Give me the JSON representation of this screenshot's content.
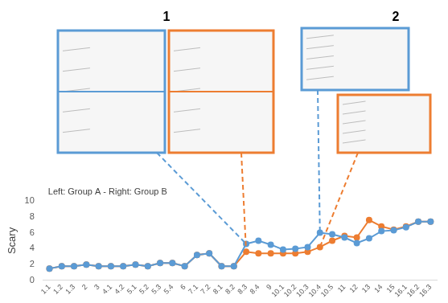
{
  "chart_data": {
    "type": "line",
    "annotations": [
      {
        "text": "Left: Group A - Right: Group B"
      },
      {
        "text": "1",
        "category": "8.3"
      },
      {
        "text": "2",
        "category": "10.4"
      }
    ],
    "y_label": "Scary",
    "categories": [
      "1.1",
      "1.2",
      "1.3",
      "2",
      "3",
      "4.1",
      "4.2",
      "5.1",
      "5.2",
      "5.3",
      "5.4",
      "6",
      "7.1",
      "7.2",
      "8.1",
      "8.2",
      "8.3",
      "8.4",
      "9",
      "10.1",
      "10.2",
      "10.3",
      "10.4",
      "10.5",
      "11",
      "12",
      "13",
      "14",
      "15",
      "16.1",
      "16.2",
      "16.3"
    ],
    "series": [
      {
        "name": "Group A",
        "color": "#5b9bd5",
        "values": [
          1.5,
          1.8,
          1.8,
          2.0,
          1.8,
          1.8,
          1.8,
          2.0,
          1.8,
          2.2,
          2.2,
          1.8,
          3.2,
          3.4,
          1.8,
          1.8,
          4.6,
          5.0,
          4.5,
          3.9,
          4.0,
          4.2,
          6.0,
          5.8,
          5.4,
          4.7,
          5.3,
          6.2,
          6.3,
          6.7,
          7.4,
          7.4
        ]
      },
      {
        "name": "Group B",
        "color": "#ed7d31",
        "values": [
          1.5,
          1.8,
          1.8,
          2.0,
          1.8,
          1.8,
          1.8,
          2.0,
          1.8,
          2.2,
          2.2,
          1.8,
          3.2,
          3.4,
          1.8,
          1.8,
          3.6,
          3.4,
          3.4,
          3.4,
          3.4,
          3.6,
          4.2,
          5.0,
          5.6,
          5.4,
          7.6,
          6.8,
          6.4,
          6.8,
          7.4,
          7.4
        ]
      }
    ],
    "ylim": [
      0,
      10
    ],
    "yticks": [
      0,
      2,
      4,
      6,
      8,
      10
    ],
    "grid": false,
    "marker": "circle"
  }
}
